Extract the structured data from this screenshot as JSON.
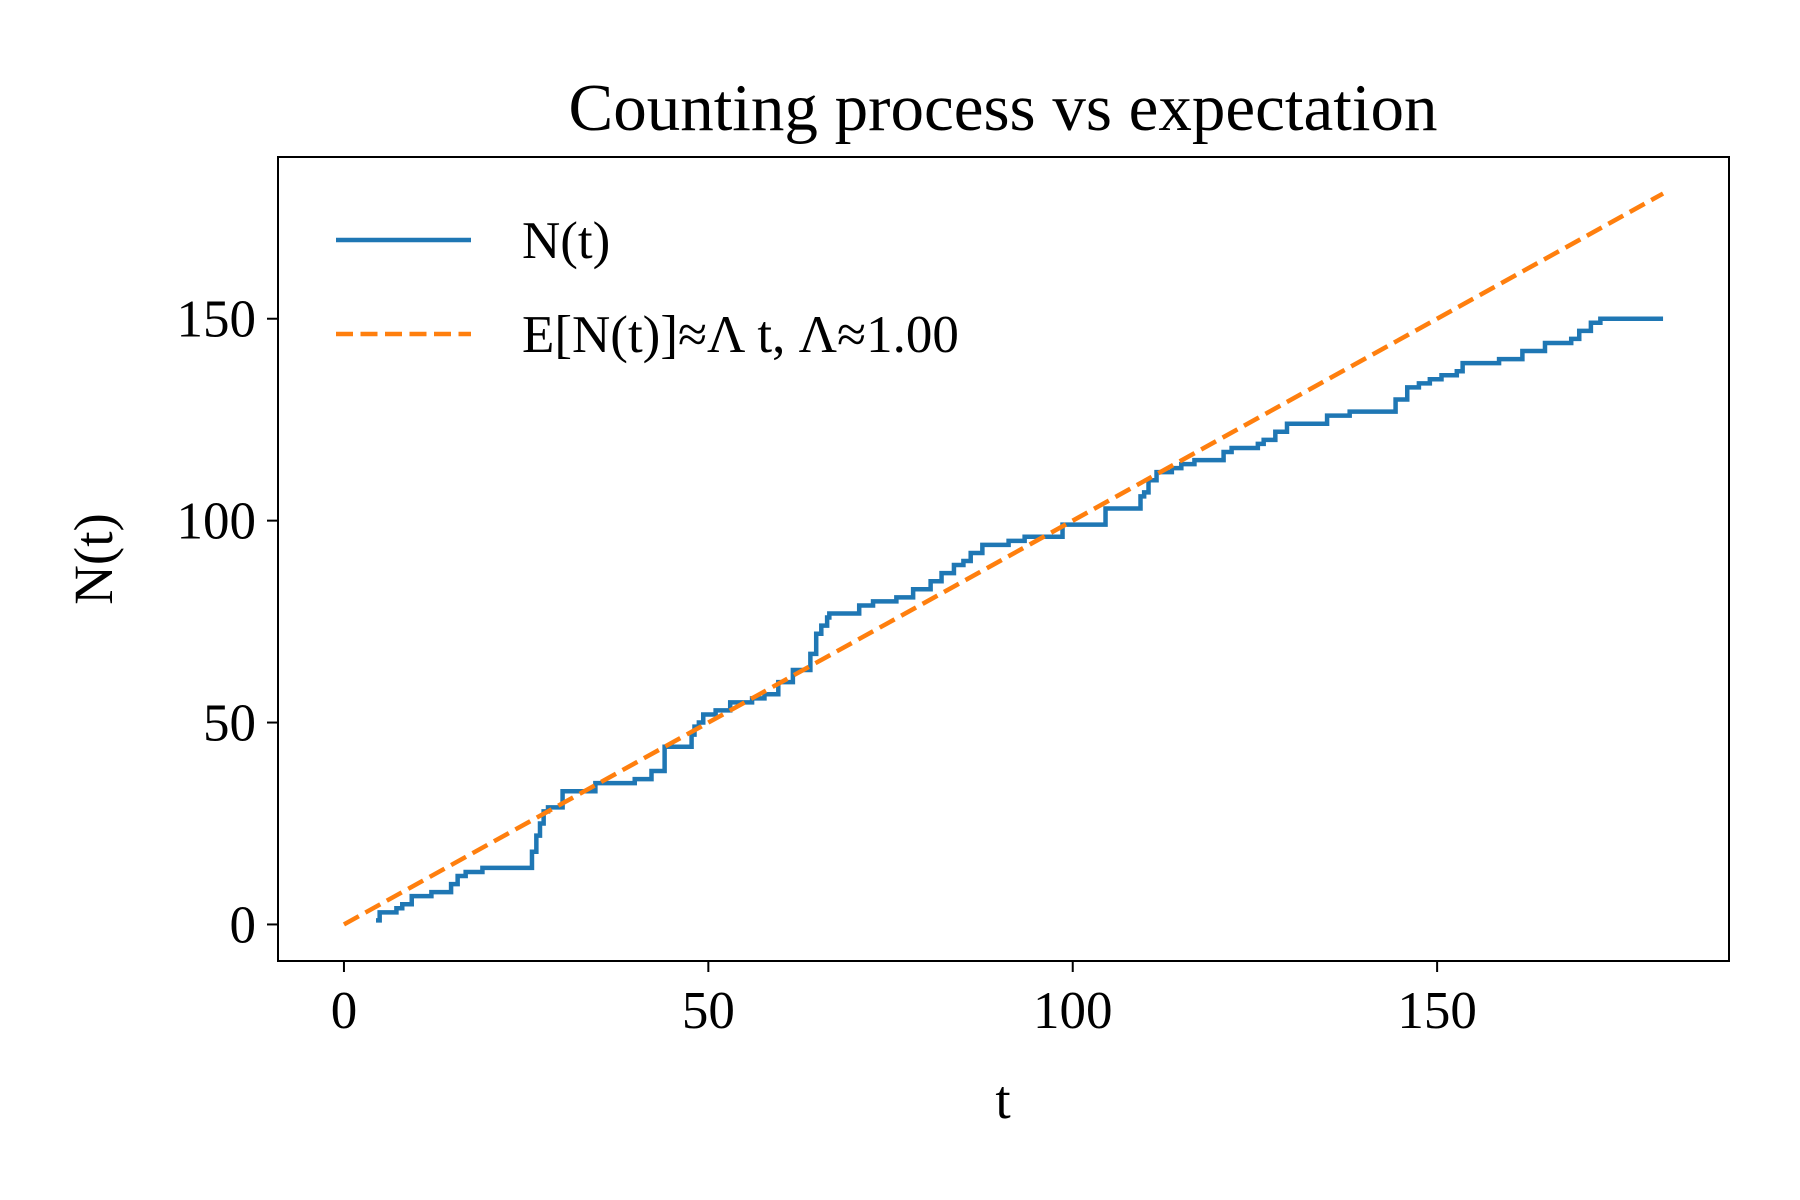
{
  "chart_data": {
    "type": "line",
    "title": "Counting process vs expectation",
    "x_label": "t",
    "y_label": "N(t)",
    "xlim": [
      -9.05,
      190.05
    ],
    "ylim": [
      -9.05,
      190.05
    ],
    "xticks": [
      0,
      50,
      100,
      150
    ],
    "yticks": [
      0,
      50,
      100,
      150
    ],
    "legend": "upper left",
    "series": [
      {
        "name": "N(t)",
        "color": "#1f77b4",
        "style": "solid",
        "drawstyle": "steps-post",
        "x": [
          4.4,
          4.9,
          7.2,
          8.0,
          9.3,
          12.0,
          14.7,
          15.6,
          16.7,
          19.0,
          25.8,
          26.4,
          26.9,
          27.4,
          28.0,
          30.0,
          34.5,
          39.9,
          42.2,
          44.0,
          47.7,
          48.1,
          48.7,
          49.3,
          51.0,
          53.0,
          56.0,
          57.7,
          59.6,
          61.6,
          64.0,
          64.8,
          65.5,
          66.3,
          66.6,
          70.7,
          72.6,
          75.8,
          78.1,
          80.5,
          82.0,
          83.7,
          85.0,
          86.0,
          87.6,
          91.2,
          93.4,
          98.6,
          104.5,
          109.3,
          109.8,
          110.4,
          111.5,
          113.6,
          114.9,
          116.7,
          120.7,
          121.8,
          125.4,
          126.2,
          127.8,
          129.4,
          134.9,
          138.0,
          144.3,
          145.9,
          147.5,
          149.0,
          150.6,
          152.7,
          153.5,
          158.5,
          161.7,
          164.8,
          168.4,
          169.5,
          171.1,
          172.4,
          173.5,
          176.6,
          179.0,
          180.1,
          181.0
        ],
        "values": [
          1,
          3,
          4,
          5,
          7,
          8,
          10,
          12,
          13,
          14,
          18,
          22,
          25,
          28,
          29,
          33,
          35,
          36,
          38,
          44,
          47,
          49,
          50,
          52,
          53,
          55,
          56,
          57,
          60,
          63,
          67,
          72,
          74,
          76,
          77,
          79,
          80,
          81,
          83,
          85,
          87,
          89,
          90,
          92,
          94,
          95,
          96,
          99,
          103,
          106,
          107,
          110,
          112,
          113,
          114,
          115,
          117,
          118,
          119,
          120,
          122,
          124,
          126,
          127,
          130,
          133,
          134,
          135,
          136,
          137,
          139,
          140,
          142,
          144,
          145,
          147,
          149,
          150,
          150,
          150,
          150,
          150,
          150
        ]
      },
      {
        "name": "E[N(t)]≈Λ t, Λ≈1.00",
        "color": "#ff7f0e",
        "style": "dashed",
        "x": [
          0,
          181
        ],
        "values": [
          0,
          181
        ]
      }
    ]
  }
}
